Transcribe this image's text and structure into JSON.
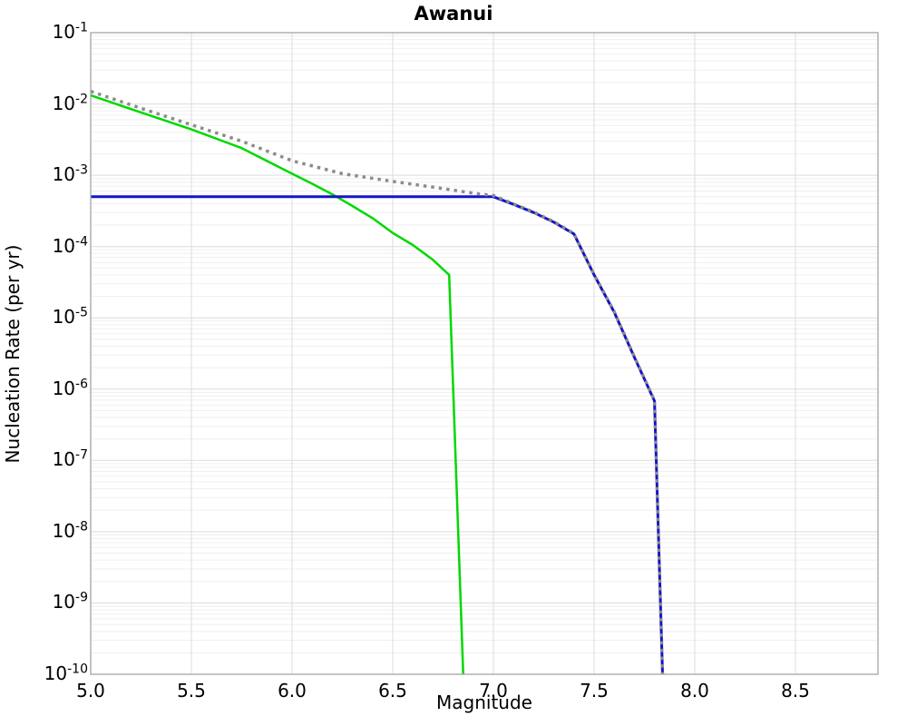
{
  "chart_data": {
    "type": "line",
    "title": "Awanui",
    "xlabel": "Magnitude",
    "ylabel": "Nucleation Rate (per yr)",
    "xlim": [
      5.0,
      8.91
    ],
    "y_exponent_max": -1,
    "y_exponent_min": -10,
    "x_ticks": [
      5.0,
      5.5,
      6.0,
      6.5,
      7.0,
      7.5,
      8.0,
      8.5
    ],
    "y_tick_exponents": [
      -1,
      -2,
      -3,
      -4,
      -5,
      -6,
      -7,
      -8,
      -9,
      -10
    ],
    "grid": true,
    "legend": "none",
    "colors": {
      "major_grid": "#dcdcdc",
      "minor_grid": "#efefef",
      "frame": "#9c9c9c",
      "background": "#ffffff"
    },
    "series": [
      {
        "name": "green-solid",
        "color": "#00d800",
        "style": "solid",
        "width": 2.5,
        "points": [
          [
            5.0,
            0.0132
          ],
          [
            5.25,
            0.0076
          ],
          [
            5.5,
            0.0044
          ],
          [
            5.75,
            0.0024
          ],
          [
            6.0,
            0.00105
          ],
          [
            6.1,
            0.00076
          ],
          [
            6.2,
            0.00054
          ],
          [
            6.3,
            0.00037
          ],
          [
            6.4,
            0.00025
          ],
          [
            6.5,
            0.000155
          ],
          [
            6.6,
            0.000105
          ],
          [
            6.7,
            6.5e-05
          ],
          [
            6.78,
            4e-05
          ],
          [
            6.85,
            1e-10
          ]
        ]
      },
      {
        "name": "blue-solid",
        "color": "#1414cd",
        "style": "solid",
        "width": 3,
        "points": [
          [
            5.0,
            0.0005
          ],
          [
            7.0,
            0.0005
          ],
          [
            7.1,
            0.00039
          ],
          [
            7.2,
            0.0003
          ],
          [
            7.3,
            0.00022
          ],
          [
            7.4,
            0.00015
          ],
          [
            7.5,
            4e-05
          ],
          [
            7.6,
            1.2e-05
          ],
          [
            7.7,
            2.8e-06
          ],
          [
            7.8,
            6.8e-07
          ],
          [
            7.84,
            1e-10
          ]
        ]
      },
      {
        "name": "gray-dotted",
        "color": "#8c8c8c",
        "style": "dotted",
        "width": 3.5,
        "points": [
          [
            5.0,
            0.015
          ],
          [
            5.25,
            0.0087
          ],
          [
            5.5,
            0.0051
          ],
          [
            5.75,
            0.003
          ],
          [
            6.0,
            0.0016
          ],
          [
            6.25,
            0.00105
          ],
          [
            6.5,
            0.00082
          ],
          [
            6.75,
            0.00065
          ],
          [
            6.9,
            0.00056
          ],
          [
            7.0,
            0.00052
          ],
          [
            7.1,
            0.000395
          ],
          [
            7.2,
            0.000305
          ],
          [
            7.3,
            0.000223
          ],
          [
            7.4,
            0.000152
          ],
          [
            7.5,
            4.05e-05
          ],
          [
            7.6,
            1.22e-05
          ],
          [
            7.7,
            2.85e-06
          ],
          [
            7.8,
            6.9e-07
          ],
          [
            7.84,
            1e-10
          ]
        ]
      }
    ]
  }
}
